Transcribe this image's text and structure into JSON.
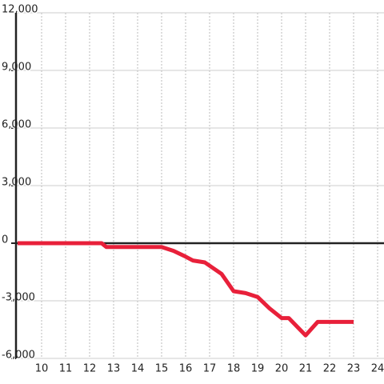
{
  "chart_data": {
    "type": "line",
    "x": [
      9,
      12,
      12.5,
      12.7,
      15,
      15.5,
      16,
      16.3,
      16.8,
      17.5,
      18,
      18.5,
      19,
      19.5,
      20,
      20.3,
      21,
      21.5,
      22,
      23
    ],
    "series": [
      {
        "color": "#e8203a",
        "values": [
          0,
          0,
          0,
          -200,
          -200,
          -400,
          -700,
          -900,
          -1000,
          -1600,
          -2500,
          -2600,
          -2800,
          -3400,
          -3900,
          -3900,
          -4800,
          -4100,
          -4100,
          -4100
        ]
      }
    ],
    "xlim": [
      9,
      24.3
    ],
    "xticks": [
      10,
      11,
      12,
      13,
      14,
      15,
      16,
      17,
      18,
      19,
      20,
      21,
      22,
      23,
      24
    ],
    "ylim": [
      -6000,
      12000
    ],
    "yticks": [
      {
        "value": -6000,
        "label": "-6,000"
      },
      {
        "value": -3000,
        "label": "-3,000"
      },
      0,
      {
        "value": 3000,
        "label": "3,000"
      },
      {
        "value": 6000,
        "label": "6,000"
      },
      {
        "value": 9000,
        "label": "9,000"
      },
      {
        "value": 12000,
        "label": "12,000"
      }
    ],
    "grid": true
  }
}
